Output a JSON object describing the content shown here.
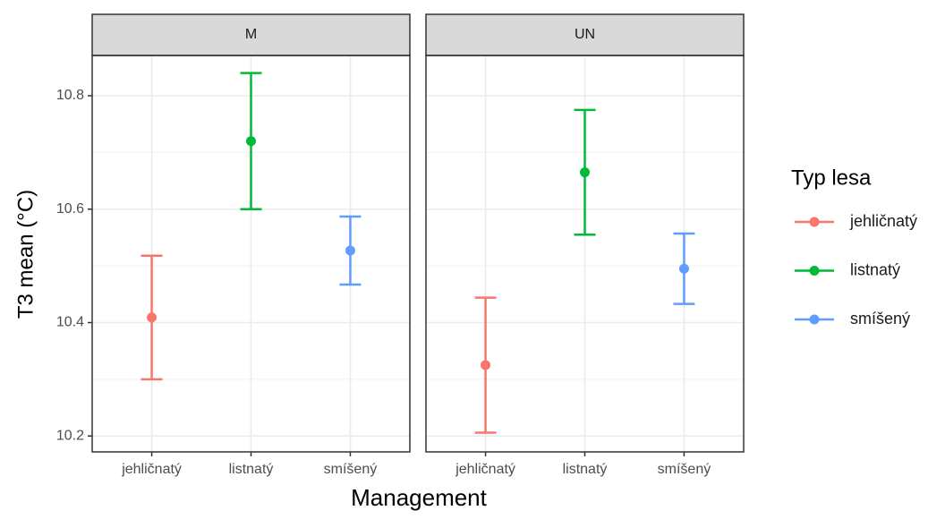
{
  "chart_data": {
    "type": "errorbar",
    "y_label": "T3 mean (°C)",
    "x_label": "Management",
    "legend_title": "Typ lesa",
    "legend_position": "right",
    "categories": [
      "jehličnatý",
      "listnatý",
      "smíšený"
    ],
    "colors": [
      "#f8766d",
      "#00ba38",
      "#619cff"
    ],
    "ylim": [
      10.172,
      10.871
    ],
    "yticks": [
      10.2,
      10.4,
      10.6,
      10.8
    ],
    "grid": true,
    "facets": [
      {
        "title": "M",
        "values": [
          10.409,
          10.72,
          10.527
        ],
        "errors": [
          0.109,
          0.12,
          0.06
        ]
      },
      {
        "title": "UN",
        "values": [
          10.325,
          10.665,
          10.495
        ],
        "errors": [
          0.119,
          0.11,
          0.062
        ]
      }
    ]
  }
}
